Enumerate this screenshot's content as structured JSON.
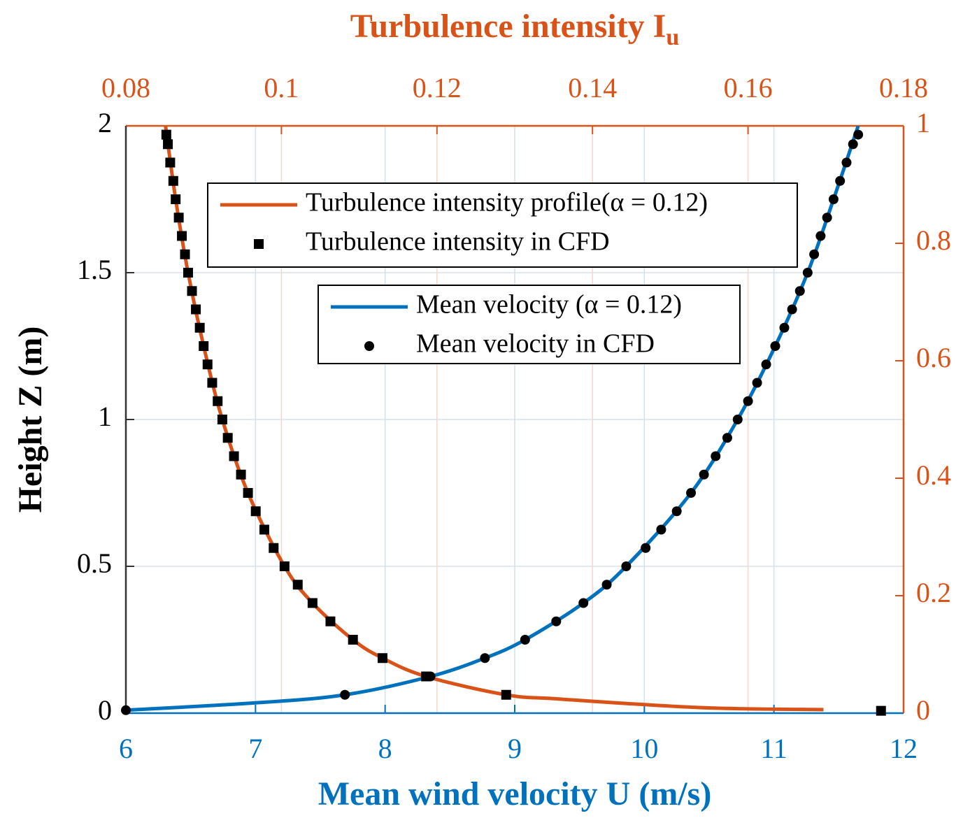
{
  "chart_data": {
    "type": "line",
    "xlabel": "Mean wind velocity U (m/s)",
    "x2label": "Turbulence intensity I",
    "x2label_sub": "u",
    "ylabel": "Height Z (m)",
    "xlim": [
      6,
      12
    ],
    "xticks": [
      6,
      7,
      8,
      9,
      10,
      11,
      12
    ],
    "x2lim": [
      0.08,
      0.18
    ],
    "x2ticks": [
      0.08,
      0.1,
      0.12,
      0.14,
      0.16,
      0.18
    ],
    "ylim": [
      0,
      2
    ],
    "yticks": [
      0,
      0.5,
      1,
      1.5,
      2
    ],
    "y2lim": [
      0,
      1
    ],
    "y2ticks": [
      0,
      0.2,
      0.4,
      0.6,
      0.8,
      1
    ],
    "grid": true,
    "xcolor": "#0072bd",
    "x2color": "#d95319",
    "series": [
      {
        "name": "Turbulence intensity profile(α = 0.12)",
        "kind": "line",
        "color": "#d95319",
        "xaxis": "x2",
        "axis": "y2",
        "x": [
          0.1697,
          0.1537,
          0.1358,
          0.1289,
          0.1186,
          0.113,
          0.1092,
          0.104,
          0.1004,
          0.0957,
          0.0924,
          0.09,
          0.088,
          0.0864,
          0.0851
        ],
        "values": [
          0.006,
          0.0095,
          0.024,
          0.03125,
          0.0625,
          0.09375,
          0.125,
          0.1875,
          0.25,
          0.375,
          0.5,
          0.625,
          0.75,
          0.875,
          1.0
        ]
      },
      {
        "name": "Turbulence intensity in CFD",
        "kind": "scatter",
        "marker": "square",
        "color": "#000000",
        "xaxis": "x2",
        "axis": "y2",
        "x": [
          0.1771,
          0.1289,
          0.1186,
          0.113,
          0.1092,
          0.1063,
          0.104,
          0.1021,
          0.1004,
          0.099,
          0.0978,
          0.0967,
          0.0957,
          0.0948,
          0.0939,
          0.0931,
          0.0924,
          0.0918,
          0.0911,
          0.0905,
          0.09,
          0.0895,
          0.089,
          0.0885,
          0.088,
          0.0876,
          0.0872,
          0.0868,
          0.0864,
          0.0861,
          0.0857,
          0.0854,
          0.0852
        ],
        "values": [
          0.004,
          0.03125,
          0.0625,
          0.09375,
          0.125,
          0.15625,
          0.1875,
          0.21875,
          0.25,
          0.28125,
          0.3125,
          0.34375,
          0.375,
          0.40625,
          0.4375,
          0.46875,
          0.5,
          0.53125,
          0.5625,
          0.59375,
          0.625,
          0.65625,
          0.6875,
          0.71875,
          0.75,
          0.78125,
          0.8125,
          0.84375,
          0.875,
          0.90625,
          0.9375,
          0.96875,
          0.985
        ]
      },
      {
        "name": "Mean velocity (α = 0.12)",
        "kind": "line",
        "color": "#0072bd",
        "xaxis": "x",
        "axis": "y",
        "x": [
          6.0,
          7.0,
          7.69,
          8.35,
          8.77,
          9.08,
          9.53,
          9.86,
          10.36,
          10.72,
          11.01,
          11.26,
          11.46,
          11.65
        ],
        "values": [
          0.01,
          0.035,
          0.0625,
          0.125,
          0.1875,
          0.25,
          0.375,
          0.5,
          0.75,
          1.0,
          1.25,
          1.5,
          1.75,
          2.0
        ]
      },
      {
        "name": "Mean velocity in CFD",
        "kind": "scatter",
        "marker": "circle",
        "color": "#000000",
        "xaxis": "x",
        "axis": "y",
        "x": [
          6.0,
          7.69,
          8.35,
          8.77,
          9.08,
          9.32,
          9.53,
          9.71,
          9.86,
          10.01,
          10.13,
          10.25,
          10.36,
          10.46,
          10.55,
          10.64,
          10.72,
          10.8,
          10.87,
          10.94,
          11.01,
          11.08,
          11.14,
          11.2,
          11.26,
          11.31,
          11.36,
          11.41,
          11.46,
          11.51,
          11.56,
          11.61,
          11.65
        ],
        "values": [
          0.01,
          0.0625,
          0.125,
          0.1875,
          0.25,
          0.3125,
          0.375,
          0.4375,
          0.5,
          0.5625,
          0.625,
          0.6875,
          0.75,
          0.8125,
          0.875,
          0.9375,
          1.0,
          1.0625,
          1.125,
          1.1875,
          1.25,
          1.3125,
          1.375,
          1.4375,
          1.5,
          1.5625,
          1.625,
          1.6875,
          1.75,
          1.8125,
          1.875,
          1.9375,
          1.97
        ]
      }
    ]
  }
}
